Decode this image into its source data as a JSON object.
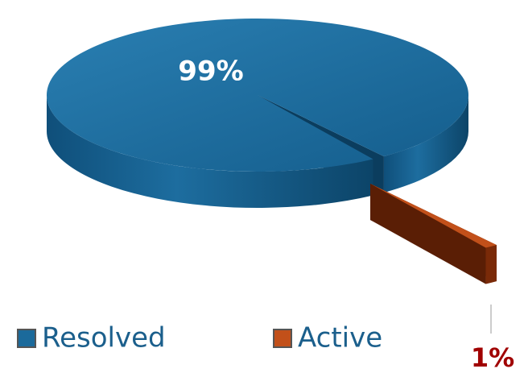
{
  "chart_data": {
    "type": "pie",
    "categories": [
      "Resolved",
      "Active"
    ],
    "values": [
      99,
      1
    ],
    "value_labels": [
      "99%",
      "1%"
    ],
    "colors": [
      "#1b6a9b",
      "#c2501a"
    ],
    "legend": "bottom"
  }
}
